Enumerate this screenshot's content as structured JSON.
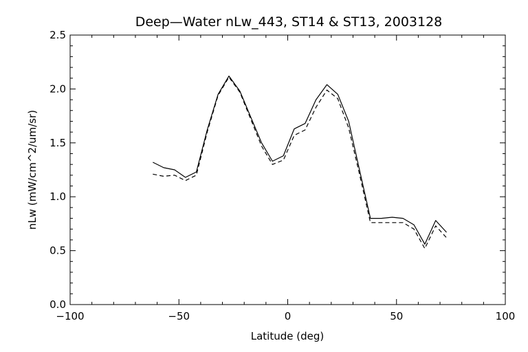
{
  "chart_data": {
    "type": "line",
    "title": "Deep—Water nLw_443, ST14 & ST13, 2003128",
    "xlabel": "Latitude (deg)",
    "ylabel": "nLw (mW/cm^2/um/sr)",
    "xlim": [
      -100,
      100
    ],
    "ylim": [
      0.0,
      2.5
    ],
    "x_ticks": [
      -100,
      -50,
      0,
      50,
      100
    ],
    "x_tick_labels": [
      "−100",
      "−50",
      "0",
      "50",
      "100"
    ],
    "y_ticks": [
      0.0,
      0.5,
      1.0,
      1.5,
      2.0,
      2.5
    ],
    "y_tick_labels": [
      "0.0",
      "0.5",
      "1.0",
      "1.5",
      "2.0",
      "2.5"
    ],
    "grid": false,
    "series": [
      {
        "style": "solid",
        "color": "#000000",
        "x": [
          -62,
          -57,
          -52,
          -47,
          -42,
          -37,
          -32,
          -27,
          -22,
          -17,
          -12,
          -7,
          -2,
          3,
          8,
          13,
          18,
          23,
          28,
          33,
          38,
          43,
          48,
          53,
          58,
          63,
          68,
          73
        ],
        "y": [
          1.32,
          1.27,
          1.25,
          1.18,
          1.23,
          1.62,
          1.95,
          2.12,
          1.98,
          1.74,
          1.5,
          1.33,
          1.38,
          1.63,
          1.68,
          1.9,
          2.04,
          1.95,
          1.7,
          1.25,
          0.8,
          0.8,
          0.81,
          0.8,
          0.74,
          0.56,
          0.78,
          0.67
        ]
      },
      {
        "style": "dashed",
        "color": "#000000",
        "x": [
          -62,
          -57,
          -52,
          -47,
          -42,
          -37,
          -32,
          -27,
          -22,
          -17,
          -12,
          -7,
          -2,
          3,
          8,
          13,
          18,
          23,
          28,
          33,
          38,
          43,
          48,
          53,
          58,
          63,
          68,
          73
        ],
        "y": [
          1.21,
          1.19,
          1.2,
          1.15,
          1.2,
          1.6,
          1.94,
          2.11,
          1.97,
          1.72,
          1.47,
          1.3,
          1.34,
          1.57,
          1.62,
          1.83,
          1.99,
          1.91,
          1.64,
          1.21,
          0.76,
          0.76,
          0.76,
          0.76,
          0.7,
          0.52,
          0.73,
          0.62
        ]
      }
    ]
  }
}
